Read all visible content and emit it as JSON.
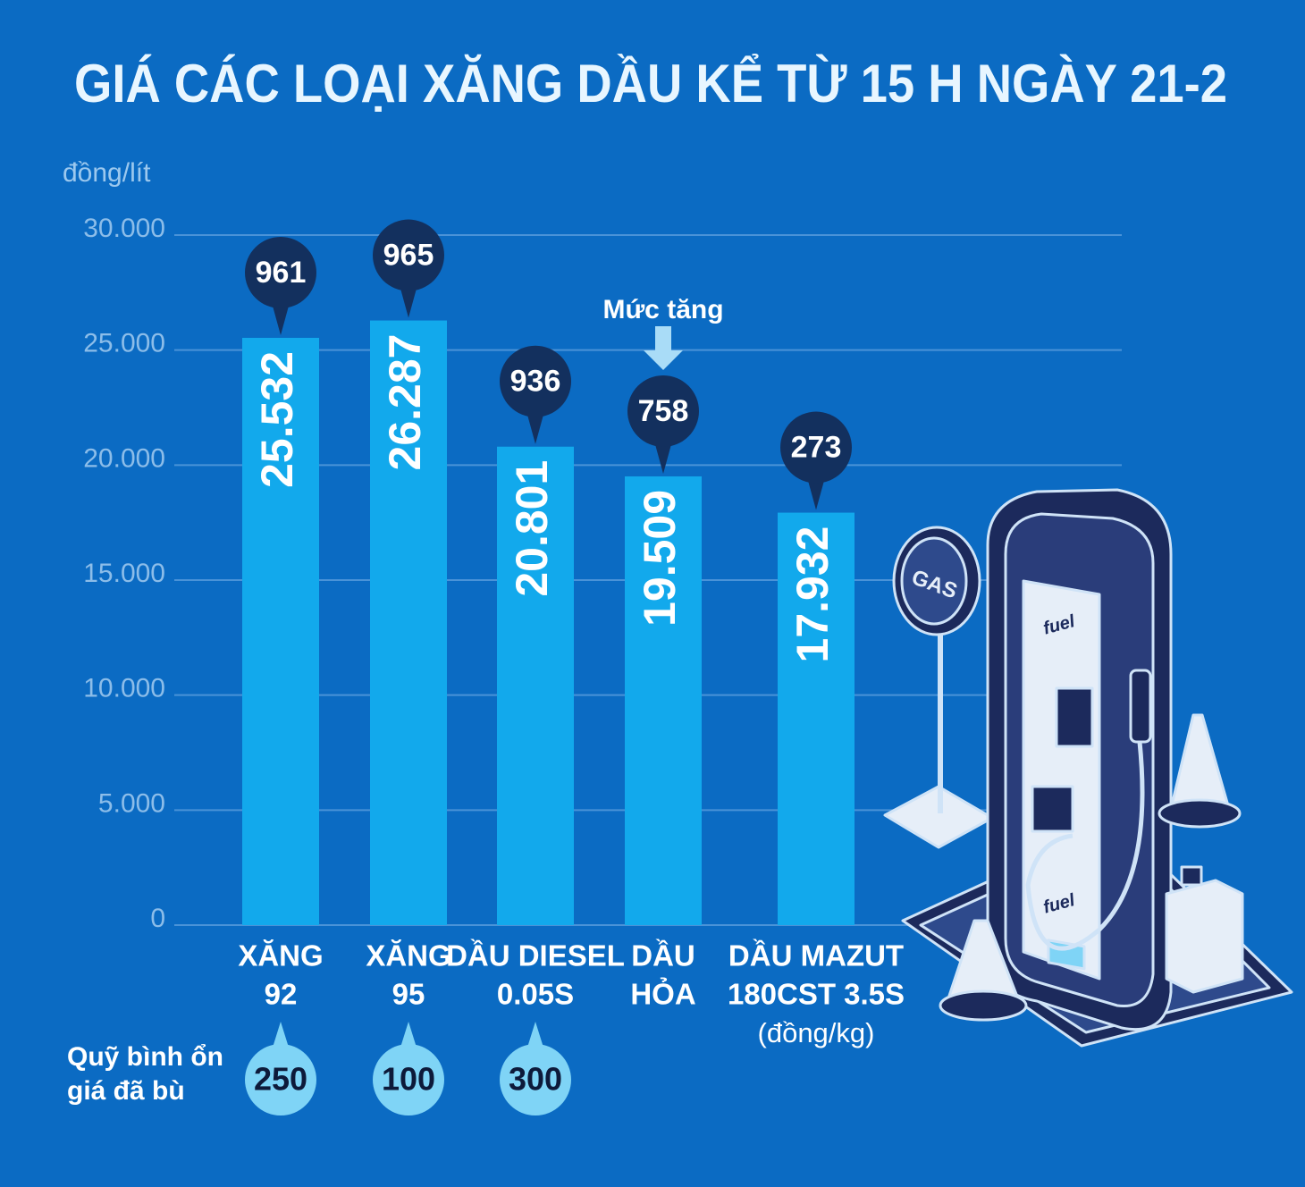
{
  "chart_data": {
    "type": "bar",
    "title": "GIÁ CÁC LOẠI XĂNG DẦU KỂ TỪ 15 H NGÀY 21-2",
    "y_label": "đồng/lít",
    "categories": [
      [
        "XĂNG",
        "92"
      ],
      [
        "XĂNG",
        "95"
      ],
      [
        "DẦU DIESEL",
        "0.05S"
      ],
      [
        "DẦU",
        "HỎA"
      ],
      [
        "DẦU MAZUT",
        "180CST 3.5S",
        "(đồng/kg)"
      ]
    ],
    "values": [
      25532,
      26287,
      20801,
      19509,
      17932
    ],
    "value_labels": [
      "25.532",
      "26.287",
      "20.801",
      "19.509",
      "17.932"
    ],
    "color": "#12a9ec",
    "increases": {
      "label": "Mức tăng",
      "values": [
        961,
        965,
        936,
        758,
        273
      ],
      "color": "#13305e"
    },
    "fund": {
      "label": [
        "Quỹ bình ổn",
        "giá đã bù"
      ],
      "values": [
        250,
        100,
        300,
        null,
        null
      ],
      "color": "#7fd4f6"
    },
    "ylim": [
      0,
      30000
    ],
    "yticks": [
      0,
      {
        "value": 5000,
        "label": "5.000"
      },
      {
        "value": 10000,
        "label": "10.000"
      },
      {
        "value": 15000,
        "label": "15.000"
      },
      {
        "value": 20000,
        "label": "20.000"
      },
      {
        "value": 25000,
        "label": "25.000"
      },
      {
        "value": 30000,
        "label": "30.000"
      }
    ],
    "grid": true
  }
}
